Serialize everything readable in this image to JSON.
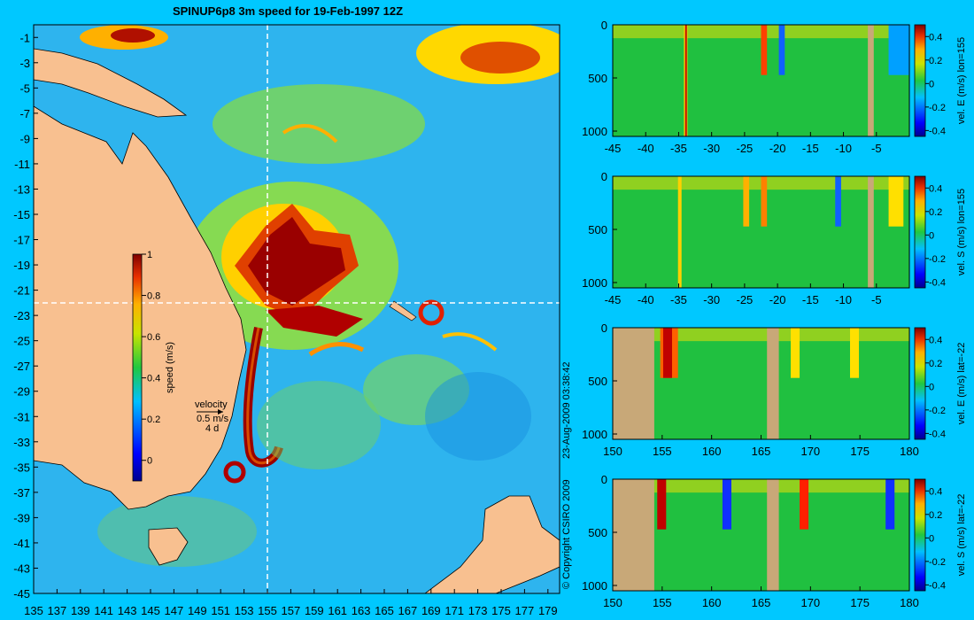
{
  "chart_data": {
    "title": "SPINUP6p8 3m speed for 19-Feb-1997 12Z",
    "copyright": "© Copyright CSIRO 2009",
    "timestamp": "23-Aug-2009 03:38:42",
    "map": {
      "type": "heatmap",
      "x_ticks": [
        "135",
        "137",
        "139",
        "141",
        "143",
        "145",
        "147",
        "149",
        "151",
        "153",
        "155",
        "157",
        "159",
        "161",
        "163",
        "165",
        "167",
        "169",
        "171",
        "173",
        "175",
        "177",
        "179"
      ],
      "y_ticks": [
        "-1",
        "-3",
        "-5",
        "-7",
        "-9",
        "-11",
        "-13",
        "-15",
        "-17",
        "-19",
        "-21",
        "-23",
        "-25",
        "-27",
        "-29",
        "-31",
        "-33",
        "-35",
        "-37",
        "-39",
        "-41",
        "-43",
        "-45"
      ],
      "xlim": [
        135,
        180
      ],
      "ylim": [
        -45,
        0
      ],
      "crosshair_lon": 155,
      "crosshair_lat": -22,
      "colorbar_label": "speed (m/s)",
      "colorbar_ticks": [
        "0",
        "0.2",
        "0.4",
        "0.6",
        "0.8",
        "1"
      ],
      "colorbar_range": [
        -0.1,
        1
      ],
      "velocity_key": {
        "title": "velocity",
        "value": "0.5 m/s",
        "duration": "4 d"
      }
    },
    "sections": [
      {
        "ylabel": "vel. E (m/s) lon=155",
        "x_ticks": [
          "-45",
          "-40",
          "-35",
          "-30",
          "-25",
          "-20",
          "-15",
          "-10",
          "-5"
        ],
        "xlim": [
          -45,
          0
        ],
        "y_ticks": [
          "0",
          "500",
          "1000"
        ],
        "ylim": [
          0,
          1050
        ],
        "colorbar_ticks": [
          "0.4",
          "0.2",
          "0",
          "-0.2",
          "-0.4"
        ],
        "colorbar_range": [
          -0.45,
          0.5
        ]
      },
      {
        "ylabel": "vel. S (m/s) lon=155",
        "x_ticks": [
          "-45",
          "-40",
          "-35",
          "-30",
          "-25",
          "-20",
          "-15",
          "-10",
          "-5"
        ],
        "xlim": [
          -45,
          0
        ],
        "y_ticks": [
          "0",
          "500",
          "1000"
        ],
        "ylim": [
          0,
          1050
        ],
        "colorbar_ticks": [
          "0.4",
          "0.2",
          "0",
          "-0.2",
          "-0.4"
        ],
        "colorbar_range": [
          -0.45,
          0.5
        ]
      },
      {
        "ylabel": "vel. E (m/s) lat=-22",
        "x_ticks": [
          "150",
          "155",
          "160",
          "165",
          "170",
          "175",
          "180"
        ],
        "xlim": [
          150,
          180
        ],
        "y_ticks": [
          "0",
          "500",
          "1000"
        ],
        "ylim": [
          0,
          1050
        ],
        "colorbar_ticks": [
          "0.4",
          "0.2",
          "0",
          "-0.2",
          "-0.4"
        ],
        "colorbar_range": [
          -0.45,
          0.5
        ]
      },
      {
        "ylabel": "vel. S (m/s) lat=-22",
        "x_ticks": [
          "150",
          "155",
          "160",
          "165",
          "170",
          "175",
          "180"
        ],
        "xlim": [
          150,
          180
        ],
        "y_ticks": [
          "0",
          "500",
          "1000"
        ],
        "ylim": [
          0,
          1050
        ],
        "colorbar_ticks": [
          "0.4",
          "0.2",
          "0",
          "-0.2",
          "-0.4"
        ],
        "colorbar_range": [
          -0.45,
          0.5
        ]
      }
    ]
  }
}
